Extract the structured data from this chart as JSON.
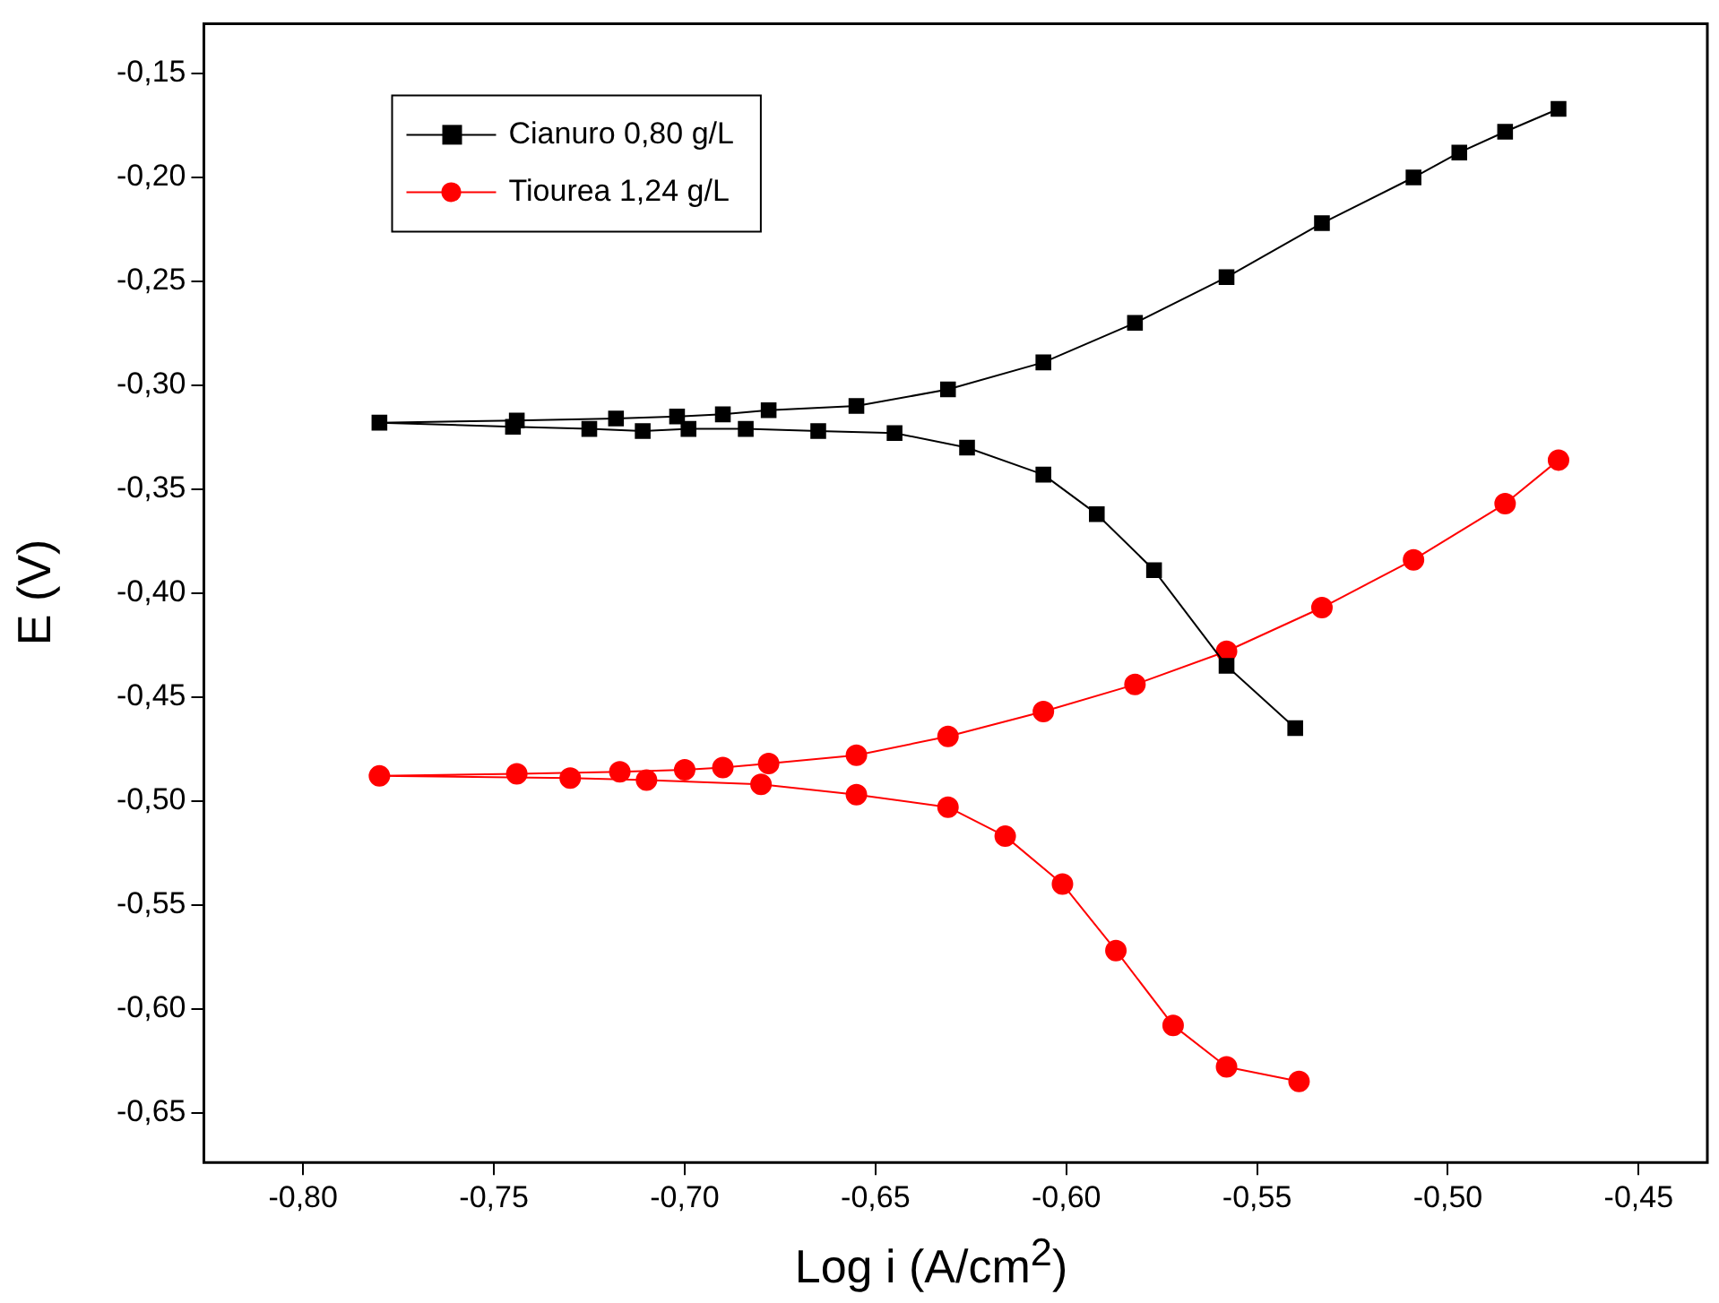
{
  "chart_data": {
    "type": "line",
    "xlabel": "Log i (A/cm$^{2}$)",
    "ylabel": "E (V)",
    "xlim": [
      -0.826,
      -0.432
    ],
    "ylim": [
      -0.674,
      -0.126
    ],
    "xticks": [
      {
        "value": -0.8,
        "label": "-0,80"
      },
      {
        "value": -0.75,
        "label": "-0,75"
      },
      {
        "value": -0.7,
        "label": "-0,70"
      },
      {
        "value": -0.65,
        "label": "-0,65"
      },
      {
        "value": -0.6,
        "label": "-0,60"
      },
      {
        "value": -0.55,
        "label": "-0,55"
      },
      {
        "value": -0.5,
        "label": "-0,50"
      },
      {
        "value": -0.45,
        "label": "-0,45"
      }
    ],
    "yticks": [
      {
        "value": -0.65,
        "label": "-0,65"
      },
      {
        "value": -0.6,
        "label": "-0,60"
      },
      {
        "value": -0.55,
        "label": "-0,55"
      },
      {
        "value": -0.5,
        "label": "-0,50"
      },
      {
        "value": -0.45,
        "label": "-0,45"
      },
      {
        "value": -0.4,
        "label": "-0,40"
      },
      {
        "value": -0.35,
        "label": "-0,35"
      },
      {
        "value": -0.3,
        "label": "-0,30"
      },
      {
        "value": -0.25,
        "label": "-0,25"
      },
      {
        "value": -0.2,
        "label": "-0,20"
      },
      {
        "value": -0.15,
        "label": "-0,15"
      }
    ],
    "grid": false,
    "legend": "top left",
    "series": [
      {
        "name": "Cianuro 0,80 g/L",
        "color": "#000000",
        "marker": "square",
        "x": [
          -0.54,
          -0.558,
          -0.577,
          -0.592,
          -0.606,
          -0.626,
          -0.645,
          -0.665,
          -0.684,
          -0.699,
          -0.711,
          -0.725,
          -0.745,
          -0.78,
          -0.744,
          -0.718,
          -0.702,
          -0.69,
          -0.678,
          -0.655,
          -0.631,
          -0.606,
          -0.582,
          -0.558,
          -0.533,
          -0.509,
          -0.497,
          -0.485,
          -0.471
        ],
        "values": [
          -0.465,
          -0.435,
          -0.389,
          -0.362,
          -0.343,
          -0.33,
          -0.323,
          -0.322,
          -0.321,
          -0.321,
          -0.322,
          -0.321,
          -0.32,
          -0.318,
          -0.317,
          -0.316,
          -0.315,
          -0.314,
          -0.312,
          -0.31,
          -0.302,
          -0.289,
          -0.27,
          -0.248,
          -0.222,
          -0.2,
          -0.188,
          -0.178,
          -0.167
        ]
      },
      {
        "name": "Tiourea 1,24 g/L",
        "color": "#ff0000",
        "marker": "circle",
        "x": [
          -0.539,
          -0.558,
          -0.572,
          -0.587,
          -0.601,
          -0.616,
          -0.631,
          -0.655,
          -0.68,
          -0.71,
          -0.73,
          -0.78,
          -0.744,
          -0.717,
          -0.7,
          -0.69,
          -0.678,
          -0.655,
          -0.631,
          -0.606,
          -0.582,
          -0.558,
          -0.533,
          -0.509,
          -0.485,
          -0.471
        ],
        "values": [
          -0.635,
          -0.628,
          -0.608,
          -0.572,
          -0.54,
          -0.517,
          -0.503,
          -0.497,
          -0.492,
          -0.49,
          -0.489,
          -0.488,
          -0.487,
          -0.486,
          -0.485,
          -0.484,
          -0.482,
          -0.478,
          -0.469,
          -0.457,
          -0.444,
          -0.428,
          -0.407,
          -0.384,
          -0.357,
          -0.336
        ]
      }
    ]
  }
}
